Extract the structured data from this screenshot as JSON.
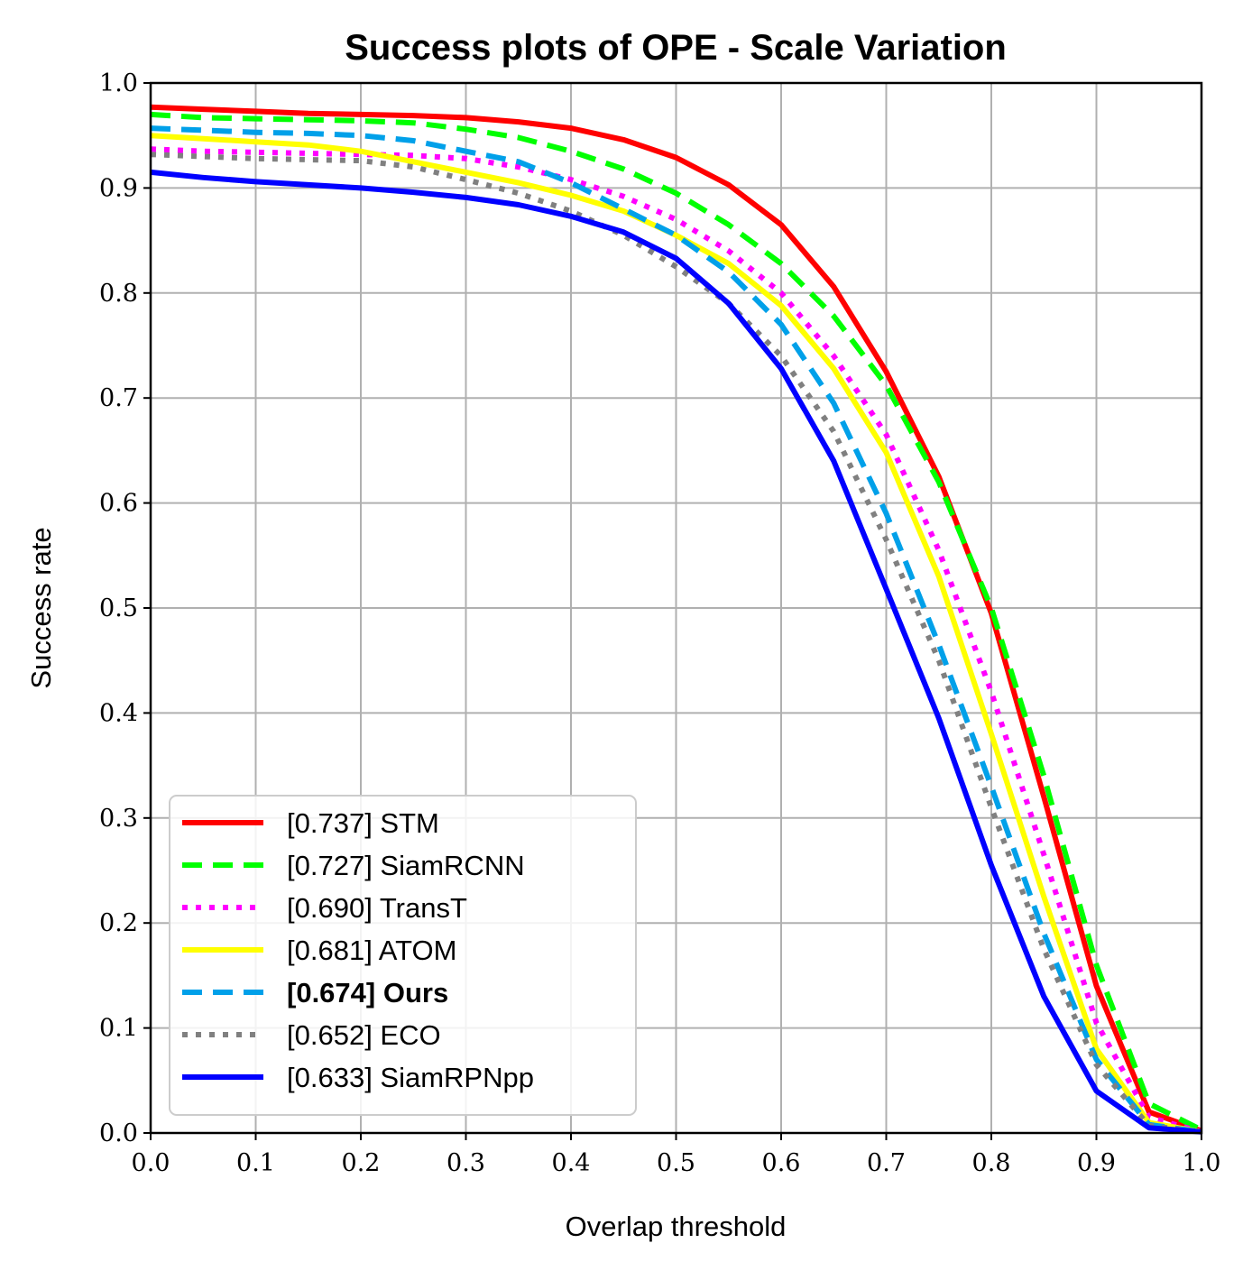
{
  "chart_data": {
    "type": "line",
    "title": "Success plots of OPE - Scale Variation",
    "xlabel": "Overlap threshold",
    "ylabel": "Success rate",
    "xlim": [
      0,
      1
    ],
    "ylim": [
      0,
      1
    ],
    "grid": true,
    "legend_position": "lower-left",
    "x_ticks": [
      "0.0",
      "0.1",
      "0.2",
      "0.3",
      "0.4",
      "0.5",
      "0.6",
      "0.7",
      "0.8",
      "0.9",
      "1.0"
    ],
    "y_ticks": [
      "0.0",
      "0.1",
      "0.2",
      "0.3",
      "0.4",
      "0.5",
      "0.6",
      "0.7",
      "0.8",
      "0.9",
      "1.0"
    ],
    "x": [
      0,
      0.05,
      0.1,
      0.15,
      0.2,
      0.25,
      0.3,
      0.35,
      0.4,
      0.45,
      0.5,
      0.55,
      0.6,
      0.65,
      0.7,
      0.75,
      0.8,
      0.85,
      0.9,
      0.95,
      1.0
    ],
    "series": [
      {
        "name": "[0.737] STM",
        "color": "#ff0000",
        "style": "solid",
        "bold": false,
        "values": [
          0.977,
          0.975,
          0.973,
          0.971,
          0.97,
          0.969,
          0.967,
          0.963,
          0.957,
          0.946,
          0.929,
          0.903,
          0.865,
          0.806,
          0.725,
          0.625,
          0.495,
          0.32,
          0.14,
          0.02,
          0.002
        ]
      },
      {
        "name": "[0.727] SiamRCNN",
        "color": "#00ff00",
        "style": "dashed",
        "bold": false,
        "values": [
          0.97,
          0.967,
          0.966,
          0.965,
          0.964,
          0.962,
          0.956,
          0.948,
          0.935,
          0.918,
          0.895,
          0.865,
          0.828,
          0.778,
          0.712,
          0.62,
          0.5,
          0.34,
          0.16,
          0.028,
          0.003
        ]
      },
      {
        "name": "[0.690] TransT",
        "color": "#ff00ff",
        "style": "dotted",
        "bold": false,
        "values": [
          0.937,
          0.935,
          0.934,
          0.933,
          0.932,
          0.931,
          0.928,
          0.92,
          0.908,
          0.892,
          0.87,
          0.84,
          0.8,
          0.74,
          0.665,
          0.555,
          0.42,
          0.265,
          0.105,
          0.015,
          0.001
        ]
      },
      {
        "name": "[0.681] ATOM",
        "color": "#ffff00",
        "style": "solid",
        "bold": false,
        "values": [
          0.95,
          0.947,
          0.944,
          0.941,
          0.935,
          0.925,
          0.915,
          0.905,
          0.893,
          0.878,
          0.855,
          0.828,
          0.788,
          0.728,
          0.648,
          0.53,
          0.38,
          0.225,
          0.08,
          0.01,
          0.001
        ]
      },
      {
        "name": "[0.674] Ours",
        "color": "#00a0e9",
        "style": "dashed",
        "bold": true,
        "values": [
          0.957,
          0.955,
          0.953,
          0.952,
          0.95,
          0.945,
          0.935,
          0.925,
          0.905,
          0.88,
          0.855,
          0.82,
          0.77,
          0.695,
          0.59,
          0.465,
          0.33,
          0.19,
          0.07,
          0.008,
          0.001
        ]
      },
      {
        "name": "[0.652] ECO",
        "color": "#808080",
        "style": "dotted",
        "bold": false,
        "values": [
          0.932,
          0.93,
          0.928,
          0.927,
          0.926,
          0.92,
          0.908,
          0.895,
          0.878,
          0.855,
          0.825,
          0.79,
          0.74,
          0.668,
          0.565,
          0.45,
          0.31,
          0.175,
          0.065,
          0.007,
          0.001
        ]
      },
      {
        "name": "[0.633] SiamRPNpp",
        "color": "#0000ff",
        "style": "solid",
        "bold": false,
        "values": [
          0.915,
          0.91,
          0.906,
          0.903,
          0.9,
          0.896,
          0.891,
          0.884,
          0.873,
          0.858,
          0.833,
          0.79,
          0.728,
          0.64,
          0.518,
          0.395,
          0.255,
          0.13,
          0.04,
          0.005,
          0.001
        ]
      }
    ]
  }
}
